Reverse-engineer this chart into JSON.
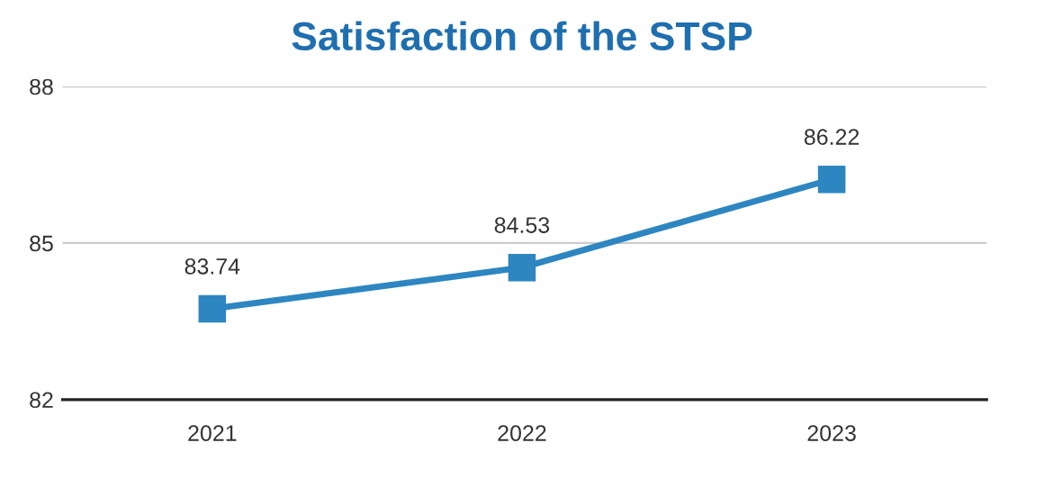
{
  "chart_data": {
    "type": "line",
    "title": "Satisfaction of the STSP",
    "categories": [
      "2021",
      "2022",
      "2023"
    ],
    "series": [
      {
        "color": "#2e86c1",
        "values": [
          83.74,
          84.53,
          86.22
        ]
      }
    ],
    "ylim": [
      82,
      88
    ],
    "yticks": [
      82,
      85,
      88
    ],
    "grid": "y",
    "marker": "square",
    "line_style": "solid",
    "data_labels": true
  }
}
